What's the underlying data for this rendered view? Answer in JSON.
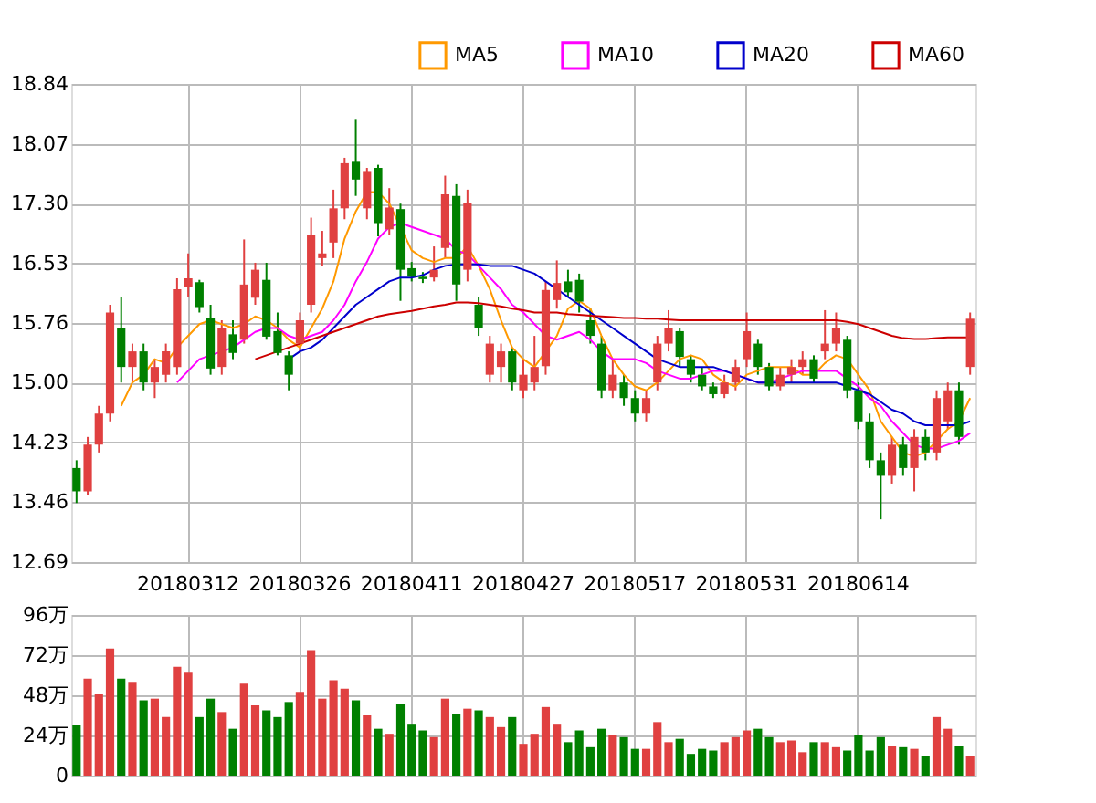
{
  "chart_data": [
    {
      "type": "candlestick",
      "categories": [
        null,
        null,
        null,
        null,
        null,
        null,
        null,
        null,
        null,
        null,
        "20180312",
        null,
        null,
        null,
        null,
        null,
        null,
        null,
        null,
        null,
        "20180326",
        null,
        null,
        null,
        null,
        null,
        null,
        null,
        null,
        null,
        "20180411",
        null,
        null,
        null,
        null,
        null,
        null,
        null,
        null,
        null,
        "20180427",
        null,
        null,
        null,
        null,
        null,
        null,
        null,
        null,
        null,
        "20180517",
        null,
        null,
        null,
        null,
        null,
        null,
        null,
        null,
        null,
        "20180531",
        null,
        null,
        null,
        null,
        null,
        null,
        null,
        null,
        null,
        "20180614",
        null,
        null,
        null,
        null,
        null,
        null,
        null,
        null,
        null,
        null
      ],
      "ohlc": [
        [
          13.9,
          14.0,
          13.45,
          13.6
        ],
        [
          13.6,
          14.3,
          13.55,
          14.2
        ],
        [
          14.2,
          14.7,
          14.1,
          14.6
        ],
        [
          14.6,
          16.0,
          14.5,
          15.9
        ],
        [
          15.7,
          16.1,
          15.0,
          15.2
        ],
        [
          15.2,
          15.5,
          15.0,
          15.4
        ],
        [
          15.4,
          15.5,
          14.9,
          15.0
        ],
        [
          15.0,
          15.3,
          14.8,
          15.2
        ],
        [
          15.1,
          15.5,
          15.0,
          15.4
        ],
        [
          15.2,
          16.34,
          15.1,
          16.2
        ],
        [
          16.23,
          16.66,
          16.1,
          16.34
        ],
        [
          16.29,
          16.32,
          15.9,
          15.97
        ],
        [
          15.83,
          16.0,
          15.1,
          15.18
        ],
        [
          15.2,
          15.8,
          15.1,
          15.7
        ],
        [
          15.62,
          15.8,
          15.3,
          15.38
        ],
        [
          15.55,
          16.84,
          15.5,
          16.26
        ],
        [
          16.09,
          16.54,
          16.0,
          16.45
        ],
        [
          16.32,
          16.54,
          15.55,
          15.59
        ],
        [
          15.66,
          15.9,
          15.35,
          15.38
        ],
        [
          15.35,
          15.4,
          14.9,
          15.1
        ],
        [
          15.5,
          15.9,
          15.4,
          15.8
        ],
        [
          16.0,
          17.12,
          15.9,
          16.9
        ],
        [
          16.6,
          16.95,
          16.5,
          16.66
        ],
        [
          16.8,
          17.48,
          16.6,
          17.24
        ],
        [
          17.24,
          17.89,
          17.1,
          17.82
        ],
        [
          17.85,
          18.39,
          17.4,
          17.61
        ],
        [
          17.24,
          17.76,
          17.1,
          17.72
        ],
        [
          17.76,
          17.8,
          16.88,
          17.05
        ],
        [
          16.97,
          17.5,
          16.9,
          17.25
        ],
        [
          17.23,
          17.3,
          16.05,
          16.45
        ],
        [
          16.47,
          16.55,
          16.3,
          16.36
        ],
        [
          16.36,
          16.42,
          16.28,
          16.33
        ],
        [
          16.35,
          16.75,
          16.3,
          16.45
        ],
        [
          16.73,
          17.66,
          16.6,
          17.42
        ],
        [
          17.4,
          17.55,
          16.05,
          16.26
        ],
        [
          16.45,
          17.48,
          16.3,
          17.31
        ],
        [
          16.0,
          16.1,
          15.6,
          15.7
        ],
        [
          15.1,
          15.6,
          15.0,
          15.5
        ],
        [
          15.2,
          15.5,
          15.0,
          15.4
        ],
        [
          15.4,
          15.45,
          14.9,
          15.0
        ],
        [
          14.9,
          15.3,
          14.8,
          15.1
        ],
        [
          15.0,
          15.6,
          14.9,
          15.2
        ],
        [
          15.21,
          16.3,
          15.1,
          16.19
        ],
        [
          16.06,
          16.57,
          15.95,
          16.28
        ],
        [
          16.3,
          16.45,
          16.1,
          16.16
        ],
        [
          16.32,
          16.4,
          15.9,
          16.04
        ],
        [
          15.8,
          15.95,
          15.5,
          15.6
        ],
        [
          15.5,
          15.6,
          14.8,
          14.9
        ],
        [
          14.9,
          15.3,
          14.8,
          15.1
        ],
        [
          15.0,
          15.1,
          14.7,
          14.8
        ],
        [
          14.8,
          14.9,
          14.5,
          14.6
        ],
        [
          14.6,
          14.9,
          14.5,
          14.8
        ],
        [
          15.0,
          15.6,
          14.9,
          15.5
        ],
        [
          15.5,
          15.93,
          15.4,
          15.7
        ],
        [
          15.66,
          15.7,
          15.2,
          15.33
        ],
        [
          15.3,
          15.35,
          15.0,
          15.1
        ],
        [
          15.1,
          15.2,
          14.9,
          14.95
        ],
        [
          14.95,
          15.0,
          14.8,
          14.85
        ],
        [
          14.85,
          15.1,
          14.8,
          15.0
        ],
        [
          15.0,
          15.3,
          14.9,
          15.2
        ],
        [
          15.3,
          15.9,
          15.2,
          15.66
        ],
        [
          15.5,
          15.55,
          15.1,
          15.2
        ],
        [
          15.2,
          15.25,
          14.9,
          14.95
        ],
        [
          14.95,
          15.2,
          14.9,
          15.1
        ],
        [
          15.1,
          15.3,
          15.0,
          15.2
        ],
        [
          15.2,
          15.4,
          15.1,
          15.3
        ],
        [
          15.3,
          15.35,
          15.0,
          15.05
        ],
        [
          15.4,
          15.93,
          15.3,
          15.5
        ],
        [
          15.5,
          15.9,
          15.4,
          15.7
        ],
        [
          15.55,
          15.6,
          14.8,
          14.9
        ],
        [
          14.9,
          15.0,
          14.4,
          14.5
        ],
        [
          14.5,
          14.6,
          13.9,
          14.0
        ],
        [
          14.0,
          14.1,
          13.24,
          13.8
        ],
        [
          13.8,
          14.3,
          13.7,
          14.2
        ],
        [
          14.2,
          14.3,
          13.8,
          13.9
        ],
        [
          13.9,
          14.4,
          13.6,
          14.3
        ],
        [
          14.3,
          14.4,
          14.0,
          14.1
        ],
        [
          14.1,
          14.9,
          14.0,
          14.8
        ],
        [
          14.5,
          15.0,
          14.4,
          14.9
        ],
        [
          14.9,
          15.0,
          14.2,
          14.3
        ],
        [
          15.2,
          15.9,
          15.1,
          15.82
        ]
      ],
      "colors": [
        "#008000",
        "#e04040",
        "#e04040",
        "#e04040",
        "#008000",
        "#e04040",
        "#008000",
        "#e04040",
        "#e04040",
        "#e04040",
        "#e04040",
        "#008000",
        "#008000",
        "#e04040",
        "#008000",
        "#e04040",
        "#e04040",
        "#008000",
        "#008000",
        "#008000",
        "#e04040",
        "#e04040",
        "#e04040",
        "#e04040",
        "#e04040",
        "#008000",
        "#e04040",
        "#008000",
        "#e04040",
        "#008000",
        "#008000",
        "#008000",
        "#e04040",
        "#e04040",
        "#008000",
        "#e04040",
        "#008000",
        "#e04040",
        "#e04040",
        "#008000",
        "#e04040",
        "#e04040",
        "#e04040",
        "#e04040",
        "#008000",
        "#008000",
        "#008000",
        "#008000",
        "#e04040",
        "#008000",
        "#008000",
        "#e04040",
        "#e04040",
        "#e04040",
        "#008000",
        "#008000",
        "#008000",
        "#008000",
        "#e04040",
        "#e04040",
        "#e04040",
        "#008000",
        "#008000",
        "#e04040",
        "#e04040",
        "#e04040",
        "#008000",
        "#e04040",
        "#e04040",
        "#008000",
        "#008000",
        "#008000",
        "#008000",
        "#e04040",
        "#008000",
        "#e04040",
        "#008000",
        "#e04040",
        "#e04040",
        "#008000",
        "#e04040"
      ],
      "series": [
        {
          "name": "MA5",
          "type": "line",
          "color": "#ff9900",
          "values": [
            null,
            null,
            null,
            null,
            14.7,
            15.0,
            15.1,
            15.3,
            15.25,
            15.45,
            15.6,
            15.75,
            15.8,
            15.75,
            15.7,
            15.75,
            15.85,
            15.8,
            15.7,
            15.55,
            15.45,
            15.7,
            15.95,
            16.3,
            16.85,
            17.2,
            17.45,
            17.45,
            17.3,
            17.0,
            16.7,
            16.6,
            16.55,
            16.6,
            16.6,
            16.75,
            16.5,
            16.2,
            15.8,
            15.45,
            15.3,
            15.2,
            15.4,
            15.6,
            15.95,
            16.05,
            15.95,
            15.6,
            15.3,
            15.1,
            14.95,
            14.9,
            15.0,
            15.15,
            15.3,
            15.35,
            15.3,
            15.1,
            15.0,
            14.95,
            15.1,
            15.15,
            15.2,
            15.2,
            15.2,
            15.1,
            15.1,
            15.25,
            15.35,
            15.3,
            15.1,
            14.9,
            14.5,
            14.3,
            14.1,
            14.05,
            14.1,
            14.25,
            14.4,
            14.5,
            14.8
          ]
        },
        {
          "name": "MA10",
          "type": "line",
          "color": "#ff00ff",
          "values": [
            null,
            null,
            null,
            null,
            null,
            null,
            null,
            null,
            null,
            15.0,
            15.15,
            15.3,
            15.35,
            15.4,
            15.45,
            15.55,
            15.65,
            15.7,
            15.7,
            15.6,
            15.55,
            15.6,
            15.65,
            15.8,
            16.0,
            16.3,
            16.55,
            16.85,
            17.0,
            17.05,
            17.0,
            16.95,
            16.9,
            16.85,
            16.7,
            16.65,
            16.5,
            16.35,
            16.2,
            16.0,
            15.9,
            15.75,
            15.6,
            15.55,
            15.6,
            15.65,
            15.55,
            15.4,
            15.3,
            15.3,
            15.3,
            15.25,
            15.15,
            15.1,
            15.05,
            15.05,
            15.1,
            15.15,
            15.15,
            15.1,
            15.05,
            15.0,
            15.0,
            15.05,
            15.1,
            15.15,
            15.15,
            15.15,
            15.15,
            15.05,
            14.95,
            14.8,
            14.7,
            14.5,
            14.35,
            14.2,
            14.15,
            14.15,
            14.2,
            14.25,
            14.35
          ]
        },
        {
          "name": "MA20",
          "type": "line",
          "color": "#0000cc",
          "values": [
            null,
            null,
            null,
            null,
            null,
            null,
            null,
            null,
            null,
            null,
            null,
            null,
            null,
            null,
            null,
            null,
            null,
            null,
            null,
            15.3,
            15.4,
            15.45,
            15.55,
            15.7,
            15.85,
            16.0,
            16.1,
            16.2,
            16.3,
            16.35,
            16.35,
            16.38,
            16.45,
            16.5,
            16.52,
            16.52,
            16.52,
            16.5,
            16.5,
            16.5,
            16.45,
            16.4,
            16.3,
            16.2,
            16.1,
            16.0,
            15.9,
            15.8,
            15.7,
            15.6,
            15.5,
            15.4,
            15.3,
            15.25,
            15.2,
            15.2,
            15.2,
            15.2,
            15.15,
            15.1,
            15.05,
            15.0,
            15.0,
            15.0,
            15.0,
            15.0,
            15.0,
            15.0,
            15.0,
            14.95,
            14.9,
            14.85,
            14.75,
            14.65,
            14.6,
            14.5,
            14.45,
            14.45,
            14.45,
            14.45,
            14.5
          ]
        },
        {
          "name": "MA60",
          "type": "line",
          "color": "#cc0000",
          "values": [
            null,
            null,
            null,
            null,
            null,
            null,
            null,
            null,
            null,
            null,
            null,
            null,
            null,
            null,
            null,
            null,
            15.3,
            15.35,
            15.4,
            15.45,
            15.5,
            15.55,
            15.6,
            15.65,
            15.7,
            15.75,
            15.8,
            15.85,
            15.88,
            15.9,
            15.92,
            15.95,
            15.98,
            16.0,
            16.03,
            16.03,
            16.02,
            16.0,
            15.98,
            15.95,
            15.93,
            15.9,
            15.9,
            15.9,
            15.88,
            15.87,
            15.86,
            15.85,
            15.84,
            15.83,
            15.83,
            15.82,
            15.82,
            15.81,
            15.8,
            15.8,
            15.8,
            15.8,
            15.8,
            15.8,
            15.8,
            15.8,
            15.8,
            15.8,
            15.8,
            15.8,
            15.8,
            15.8,
            15.8,
            15.78,
            15.75,
            15.7,
            15.65,
            15.6,
            15.57,
            15.56,
            15.56,
            15.57,
            15.58,
            15.58,
            15.58
          ]
        }
      ],
      "ylim": [
        12.69,
        18.84
      ],
      "yticks": [
        12.69,
        13.46,
        14.23,
        {
          "value": 15,
          "label": "15.00"
        },
        15.76,
        16.53,
        {
          "value": 17.3,
          "label": "17.30"
        },
        18.07,
        18.84
      ],
      "grid": true,
      "legend": "top right"
    },
    {
      "type": "bar",
      "categories": [
        null,
        null,
        null,
        null,
        null,
        null,
        null,
        null,
        null,
        null,
        "20180312",
        null,
        null,
        null,
        null,
        null,
        null,
        null,
        null,
        null,
        "20180326",
        null,
        null,
        null,
        null,
        null,
        null,
        null,
        null,
        null,
        "20180411",
        null,
        null,
        null,
        null,
        null,
        null,
        null,
        null,
        null,
        "20180427",
        null,
        null,
        null,
        null,
        null,
        null,
        null,
        null,
        null,
        "20180517",
        null,
        null,
        null,
        null,
        null,
        null,
        null,
        null,
        null,
        "20180531",
        null,
        null,
        null,
        null,
        null,
        null,
        null,
        null,
        null,
        "20180614",
        null,
        null,
        null,
        null,
        null,
        null,
        null,
        null,
        null,
        null
      ],
      "values": [
        30,
        58,
        49,
        76,
        58,
        56,
        45,
        46,
        35,
        65,
        62,
        35,
        46,
        38,
        28,
        55,
        42,
        39,
        35,
        44,
        50,
        75,
        46,
        57,
        52,
        45,
        36,
        28,
        25,
        43,
        31,
        27,
        23,
        46,
        37,
        40,
        39,
        35,
        29,
        35,
        19,
        25,
        41,
        31,
        20,
        27,
        17,
        28,
        24,
        23,
        16,
        16,
        32,
        20,
        22,
        13,
        16,
        15,
        20,
        23,
        27,
        28,
        23,
        20,
        21,
        14,
        20,
        20,
        17,
        15,
        24,
        15,
        23,
        18,
        17,
        16,
        12,
        35,
        28,
        18,
        12
      ],
      "colors": [
        "#008000",
        "#e04040",
        "#e04040",
        "#e04040",
        "#008000",
        "#e04040",
        "#008000",
        "#e04040",
        "#e04040",
        "#e04040",
        "#e04040",
        "#008000",
        "#008000",
        "#e04040",
        "#008000",
        "#e04040",
        "#e04040",
        "#008000",
        "#008000",
        "#008000",
        "#e04040",
        "#e04040",
        "#e04040",
        "#e04040",
        "#e04040",
        "#008000",
        "#e04040",
        "#008000",
        "#e04040",
        "#008000",
        "#008000",
        "#008000",
        "#e04040",
        "#e04040",
        "#008000",
        "#e04040",
        "#008000",
        "#e04040",
        "#e04040",
        "#008000",
        "#e04040",
        "#e04040",
        "#e04040",
        "#e04040",
        "#008000",
        "#008000",
        "#008000",
        "#008000",
        "#e04040",
        "#008000",
        "#008000",
        "#e04040",
        "#e04040",
        "#e04040",
        "#008000",
        "#008000",
        "#008000",
        "#008000",
        "#e04040",
        "#e04040",
        "#e04040",
        "#008000",
        "#008000",
        "#e04040",
        "#e04040",
        "#e04040",
        "#008000",
        "#e04040",
        "#e04040",
        "#008000",
        "#008000",
        "#008000",
        "#008000",
        "#e04040",
        "#008000",
        "#e04040",
        "#008000",
        "#e04040",
        "#e04040",
        "#008000",
        "#e04040"
      ],
      "ylim": [
        0,
        96
      ],
      "yticks": [
        0,
        {
          "value": 24,
          "label": "24万"
        },
        {
          "value": 48,
          "label": "48万"
        },
        {
          "value": 72,
          "label": "72万"
        },
        {
          "value": 96,
          "label": "96万"
        }
      ],
      "grid": true,
      "tick_labels": "y"
    }
  ]
}
